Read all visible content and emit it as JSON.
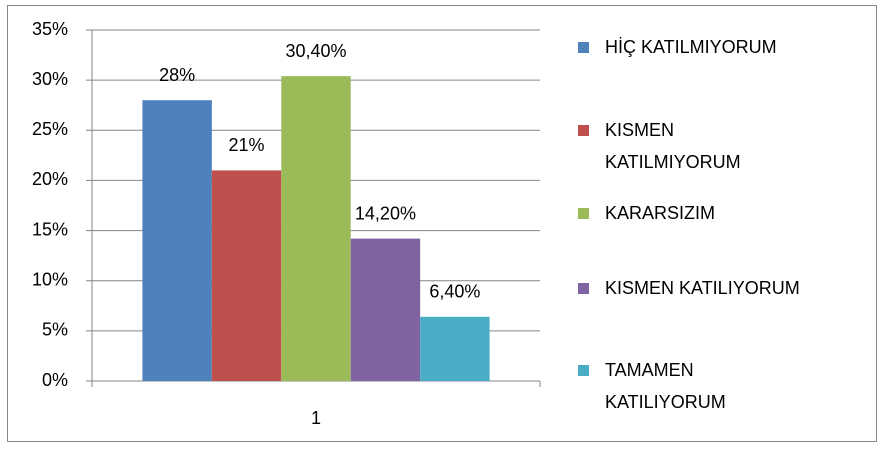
{
  "chart_data": {
    "type": "bar",
    "categories": [
      "1"
    ],
    "series": [
      {
        "name": "HİÇ KATILMIYORUM",
        "color": "#4f81bd",
        "values": [
          28
        ],
        "value_labels": [
          "28%"
        ]
      },
      {
        "name": "KISMEN KATILMIYORUM",
        "color": "#c0504d",
        "values": [
          21
        ],
        "value_labels": [
          "21%"
        ]
      },
      {
        "name": "KARARSIZIM",
        "color": "#9bbb59",
        "values": [
          30.4
        ],
        "value_labels": [
          "30,40%"
        ]
      },
      {
        "name": "KISMEN KATILIYORUM",
        "color": "#8064a2",
        "values": [
          14.2
        ],
        "value_labels": [
          "14,20%"
        ]
      },
      {
        "name": "TAMAMEN KATILIYORUM",
        "color": "#4bacc6",
        "values": [
          6.4
        ],
        "value_labels": [
          "6,40%"
        ]
      }
    ],
    "ylim": [
      0,
      35
    ],
    "yticks": [
      {
        "value": 0,
        "label": "0%"
      },
      {
        "value": 5,
        "label": "5%"
      },
      {
        "value": 10,
        "label": "10%"
      },
      {
        "value": 15,
        "label": "15%"
      },
      {
        "value": 20,
        "label": "20%"
      },
      {
        "value": 25,
        "label": "25%"
      },
      {
        "value": 30,
        "label": "30%"
      },
      {
        "value": 35,
        "label": "35%"
      }
    ],
    "grid": true,
    "legend": "right"
  }
}
